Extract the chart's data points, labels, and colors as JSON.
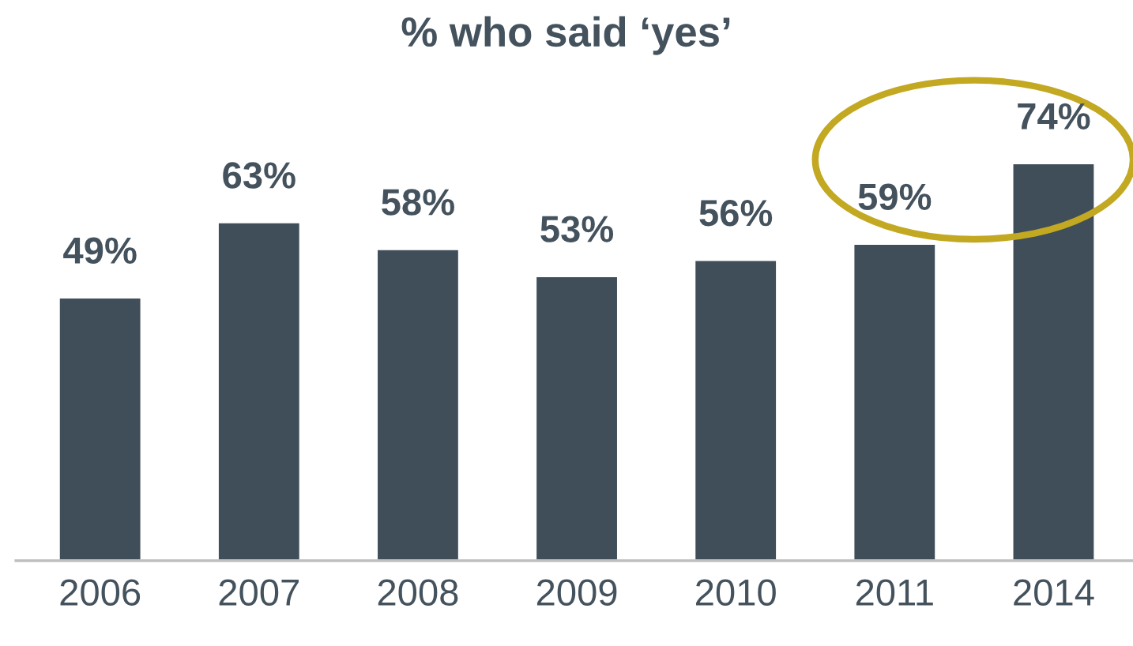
{
  "chart_data": {
    "type": "bar",
    "title": "% who said ‘yes’",
    "categories": [
      "2006",
      "2007",
      "2008",
      "2009",
      "2010",
      "2011",
      "2014"
    ],
    "values": [
      49,
      63,
      58,
      53,
      56,
      59,
      74
    ],
    "value_labels": [
      "49%",
      "63%",
      "58%",
      "53%",
      "56%",
      "59%",
      "74%"
    ],
    "color": "#3f4e59",
    "grid": false,
    "legend": false
  }
}
